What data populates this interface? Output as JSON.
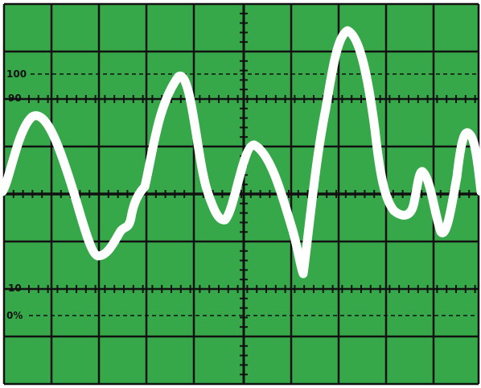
{
  "colors": {
    "screen": "#37a84a",
    "grid": "#111111",
    "trace": "#ffffff"
  },
  "labels": {
    "l100": "100",
    "l90": "90",
    "l10": "10",
    "l0": "0%"
  },
  "graticule": {
    "major_divisions_x": 10,
    "major_divisions_y": 8,
    "minor_ticks_per_division": 5,
    "dashed_reference_levels": [
      "100",
      "0%"
    ],
    "ticked_reference_levels": [
      "90",
      "10"
    ]
  },
  "trace": {
    "shape": "irregular-waveform",
    "icon": "waveform-trace"
  }
}
